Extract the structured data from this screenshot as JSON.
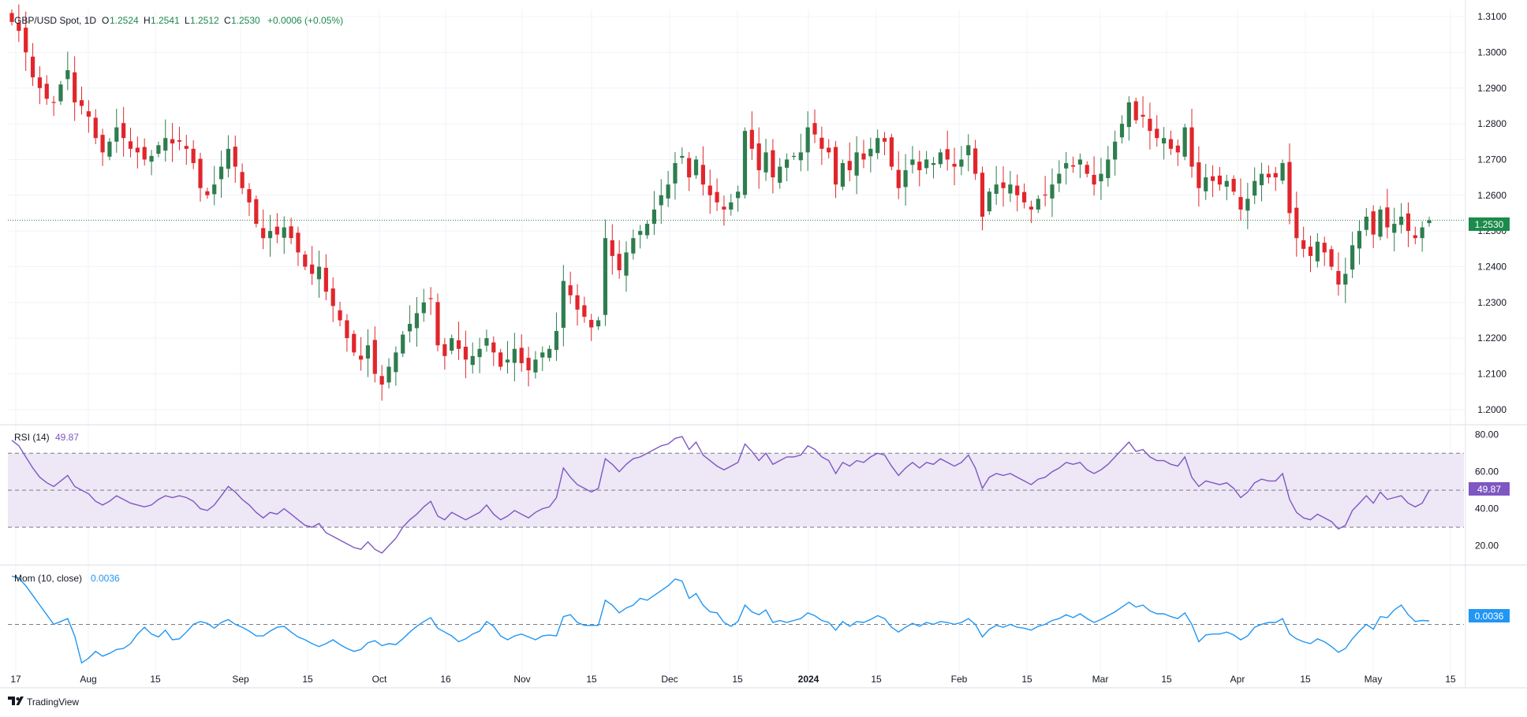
{
  "header": {
    "symbol": "GBP/USD Spot, 1D",
    "o_label": "O",
    "o_value": "1.2524",
    "h_label": "H",
    "h_value": "1.2541",
    "l_label": "L",
    "l_value": "1.2512",
    "c_label": "C",
    "c_value": "1.2530",
    "change": "+0.0006 (+0.05%)"
  },
  "rsi_pane": {
    "label": "RSI (14)",
    "value": "49.87"
  },
  "mom_pane": {
    "label": "Mom (10, close)",
    "value": "0.0036"
  },
  "branding": {
    "logo_text": "TradingView"
  },
  "colors": {
    "up": "#2e7d4f",
    "down": "#e0262c",
    "rsi_line": "#7e57c2",
    "rsi_band": "#ede7f6",
    "mom_line": "#2196f3",
    "grid": "#f0f3fa",
    "axis_text": "#131722",
    "price_tag": "#1b8a4a"
  },
  "chart_data": [
    {
      "type": "candlestick",
      "title": "GBP/USD Spot, 1D",
      "ylim": [
        1.196,
        1.312
      ],
      "y_ticks": [
        "1.2000",
        "1.2100",
        "1.2200",
        "1.2300",
        "1.2400",
        "1.2500",
        "1.2600",
        "1.2700",
        "1.2800",
        "1.2900",
        "1.3000",
        "1.3100"
      ],
      "x_ticks": [
        "17",
        "Aug",
        "15",
        "Sep",
        "15",
        "Oct",
        "16",
        "Nov",
        "15",
        "Dec",
        "15",
        "2024",
        "15",
        "Feb",
        "15",
        "Mar",
        "15",
        "Apr",
        "15",
        "May",
        "15"
      ],
      "last_price": "1.2530",
      "current_price_line": 1.253,
      "close_series": [
        1.3085,
        1.306,
        1.3,
        1.293,
        1.29,
        1.287,
        1.286,
        1.291,
        1.295,
        1.286,
        1.285,
        1.282,
        1.276,
        1.272,
        1.275,
        1.279,
        1.276,
        1.273,
        1.272,
        1.27,
        1.271,
        1.274,
        1.276,
        1.2745,
        1.275,
        1.273,
        1.269,
        1.262,
        1.26,
        1.263,
        1.268,
        1.273,
        1.268,
        1.262,
        1.258,
        1.252,
        1.248,
        1.25,
        1.249,
        1.251,
        1.248,
        1.244,
        1.24,
        1.238,
        1.24,
        1.233,
        1.229,
        1.225,
        1.22,
        1.216,
        1.214,
        1.218,
        1.21,
        1.207,
        1.212,
        1.216,
        1.221,
        1.224,
        1.227,
        1.23,
        1.231,
        1.218,
        1.215,
        1.22,
        1.217,
        1.214,
        1.215,
        1.217,
        1.22,
        1.216,
        1.212,
        1.214,
        1.217,
        1.213,
        1.211,
        1.214,
        1.216,
        1.217,
        1.222,
        1.236,
        1.232,
        1.228,
        1.226,
        1.223,
        1.225,
        1.248,
        1.243,
        1.239,
        1.244,
        1.248,
        1.25,
        1.252,
        1.256,
        1.26,
        1.263,
        1.269,
        1.271,
        1.265,
        1.27,
        1.263,
        1.26,
        1.258,
        1.256,
        1.258,
        1.261,
        1.278,
        1.273,
        1.267,
        1.272,
        1.265,
        1.268,
        1.27,
        1.271,
        1.272,
        1.279,
        1.277,
        1.273,
        1.272,
        1.263,
        1.269,
        1.267,
        1.272,
        1.27,
        1.273,
        1.276,
        1.275,
        1.268,
        1.262,
        1.267,
        1.27,
        1.267,
        1.27,
        1.269,
        1.272,
        1.27,
        1.268,
        1.27,
        1.274,
        1.266,
        1.254,
        1.261,
        1.263,
        1.262,
        1.263,
        1.26,
        1.258,
        1.256,
        1.259,
        1.26,
        1.263,
        1.266,
        1.269,
        1.268,
        1.27,
        1.266,
        1.263,
        1.266,
        1.27,
        1.275,
        1.28,
        1.286,
        1.281,
        1.282,
        1.278,
        1.276,
        1.276,
        1.273,
        1.272,
        1.279,
        1.268,
        1.262,
        1.265,
        1.264,
        1.263,
        1.264,
        1.261,
        1.256,
        1.259,
        1.264,
        1.266,
        1.265,
        1.265,
        1.269,
        1.255,
        1.248,
        1.245,
        1.243,
        1.247,
        1.244,
        1.24,
        1.235,
        1.238,
        1.246,
        1.25,
        1.254,
        1.249,
        1.256,
        1.251,
        1.252,
        1.254,
        1.25,
        1.248,
        1.251,
        1.253
      ],
      "rsi": {
        "label": "RSI (14)",
        "ylim": [
          10,
          85
        ],
        "y_ticks": [
          "20.00",
          "40.00",
          "60.00",
          "80.00"
        ],
        "band": [
          30,
          70
        ],
        "midline": 50,
        "last": "49.87",
        "values": [
          77,
          74,
          68,
          62,
          57,
          54,
          52,
          55,
          58,
          52,
          50,
          48,
          44,
          42,
          44,
          47,
          45,
          43,
          42,
          41,
          42,
          45,
          47,
          46,
          47,
          46,
          44,
          40,
          39,
          42,
          47,
          52,
          49,
          45,
          42,
          38,
          35,
          38,
          37,
          40,
          37,
          34,
          31,
          30,
          32,
          27,
          25,
          23,
          21,
          19,
          18,
          22,
          18,
          16,
          20,
          24,
          30,
          34,
          37,
          41,
          44,
          36,
          34,
          38,
          36,
          34,
          36,
          38,
          42,
          37,
          34,
          36,
          39,
          37,
          35,
          38,
          40,
          41,
          46,
          62,
          57,
          53,
          51,
          49,
          51,
          67,
          64,
          60,
          64,
          67,
          68,
          70,
          72,
          74,
          75,
          78,
          79,
          72,
          76,
          69,
          66,
          63,
          61,
          63,
          65,
          75,
          71,
          66,
          70,
          64,
          66,
          68,
          68,
          69,
          74,
          72,
          68,
          66,
          59,
          65,
          63,
          66,
          65,
          68,
          70,
          69,
          63,
          58,
          62,
          65,
          62,
          65,
          64,
          67,
          65,
          63,
          65,
          69,
          62,
          51,
          57,
          59,
          58,
          59,
          57,
          55,
          53,
          56,
          57,
          60,
          62,
          65,
          64,
          65,
          61,
          59,
          61,
          64,
          68,
          72,
          76,
          71,
          72,
          68,
          66,
          66,
          64,
          63,
          68,
          57,
          52,
          55,
          54,
          53,
          54,
          51,
          46,
          49,
          54,
          56,
          55,
          55,
          59,
          45,
          38,
          35,
          34,
          37,
          35,
          33,
          29,
          31,
          39,
          43,
          47,
          43,
          49,
          45,
          46,
          47,
          43,
          41,
          43,
          49.87
        ]
      },
      "momentum": {
        "label": "Mom (10, close)",
        "ylim": [
          -0.065,
          0.06
        ],
        "zero_line": 0,
        "last": "0.0036",
        "values": [
          0.05,
          0.048,
          0.04,
          0.03,
          0.02,
          0.01,
          0.0,
          0.003,
          0.006,
          -0.012,
          -0.04,
          -0.035,
          -0.028,
          -0.033,
          -0.03,
          -0.026,
          -0.025,
          -0.02,
          -0.01,
          -0.003,
          -0.01,
          -0.013,
          -0.006,
          -0.016,
          -0.015,
          -0.008,
          0.0,
          0.003,
          0.001,
          -0.004,
          0.002,
          0.005,
          0.0,
          -0.003,
          -0.007,
          -0.012,
          -0.012,
          -0.007,
          -0.003,
          -0.002,
          -0.008,
          -0.013,
          -0.016,
          -0.02,
          -0.023,
          -0.02,
          -0.016,
          -0.021,
          -0.025,
          -0.028,
          -0.026,
          -0.019,
          -0.017,
          -0.022,
          -0.02,
          -0.021,
          -0.015,
          -0.008,
          -0.002,
          0.003,
          0.007,
          -0.004,
          -0.008,
          -0.012,
          -0.018,
          -0.015,
          -0.01,
          -0.007,
          0.003,
          -0.002,
          -0.012,
          -0.016,
          -0.012,
          -0.01,
          -0.013,
          -0.016,
          -0.012,
          -0.011,
          -0.012,
          0.008,
          0.01,
          0.002,
          -0.001,
          -0.001,
          -0.001,
          0.025,
          0.02,
          0.012,
          0.017,
          0.02,
          0.027,
          0.025,
          0.03,
          0.035,
          0.04,
          0.047,
          0.045,
          0.027,
          0.032,
          0.02,
          0.013,
          0.012,
          0.002,
          -0.002,
          0.003,
          0.02,
          0.013,
          0.01,
          0.015,
          0.002,
          0.004,
          0.002,
          0.004,
          0.006,
          0.012,
          0.009,
          0.004,
          0.002,
          -0.006,
          0.003,
          -0.002,
          0.003,
          0.002,
          0.005,
          0.009,
          0.006,
          -0.003,
          -0.008,
          -0.003,
          0.001,
          -0.002,
          0.002,
          0.0,
          0.003,
          0.002,
          0.0,
          0.002,
          0.006,
          0.0,
          -0.013,
          -0.005,
          -0.001,
          -0.003,
          0.0,
          -0.003,
          -0.004,
          -0.006,
          -0.002,
          0.0,
          0.004,
          0.006,
          0.01,
          0.007,
          0.011,
          0.006,
          0.002,
          0.005,
          0.009,
          0.013,
          0.018,
          0.023,
          0.018,
          0.02,
          0.014,
          0.011,
          0.011,
          0.008,
          0.006,
          0.012,
          0.0,
          -0.018,
          -0.011,
          -0.01,
          -0.01,
          -0.008,
          -0.011,
          -0.016,
          -0.012,
          -0.003,
          0.0,
          0.002,
          0.002,
          0.006,
          -0.01,
          -0.015,
          -0.018,
          -0.02,
          -0.015,
          -0.018,
          -0.023,
          -0.029,
          -0.025,
          -0.015,
          -0.007,
          0.0,
          -0.005,
          0.008,
          0.007,
          0.015,
          0.02,
          0.01,
          0.003,
          0.004,
          0.0036
        ]
      }
    }
  ]
}
